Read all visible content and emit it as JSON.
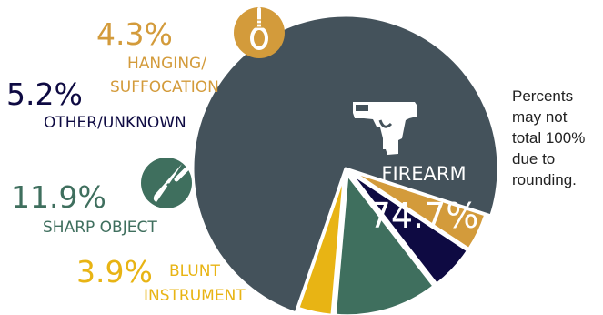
{
  "chart_data": {
    "type": "pie",
    "slices": [
      {
        "label": "FIREARM",
        "value": 74.7,
        "value_text": "74.7%",
        "color": "#44525b",
        "icon": "handgun-icon"
      },
      {
        "label": "BLUNT INSTRUMENT",
        "label_lines": [
          "BLUNT",
          "INSTRUMENT"
        ],
        "value": 3.9,
        "value_text": "3.9%",
        "color": "#e8b414"
      },
      {
        "label": "SHARP OBJECT",
        "label_lines": [
          "SHARP OBJECT"
        ],
        "value": 11.9,
        "value_text": "11.9%",
        "color": "#3f6f5e",
        "icon": "knife-icon"
      },
      {
        "label": "OTHER/UNKNOWN",
        "label_lines": [
          "OTHER/UNKNOWN"
        ],
        "value": 5.2,
        "value_text": "5.2%",
        "color": "#0e0a42"
      },
      {
        "label": "HANGING/ SUFFOCATION",
        "label_lines": [
          "HANGING/",
          "SUFFOCATION"
        ],
        "value": 4.3,
        "value_text": "4.3%",
        "color": "#d39b3b",
        "icon": "noose-icon"
      }
    ],
    "exploded": [
      "BLUNT INSTRUMENT",
      "SHARP OBJECT",
      "OTHER/UNKNOWN",
      "HANGING/ SUFFOCATION"
    ]
  },
  "note_lines": [
    "Percents",
    "may not",
    "total 100%",
    "due to",
    "rounding."
  ]
}
